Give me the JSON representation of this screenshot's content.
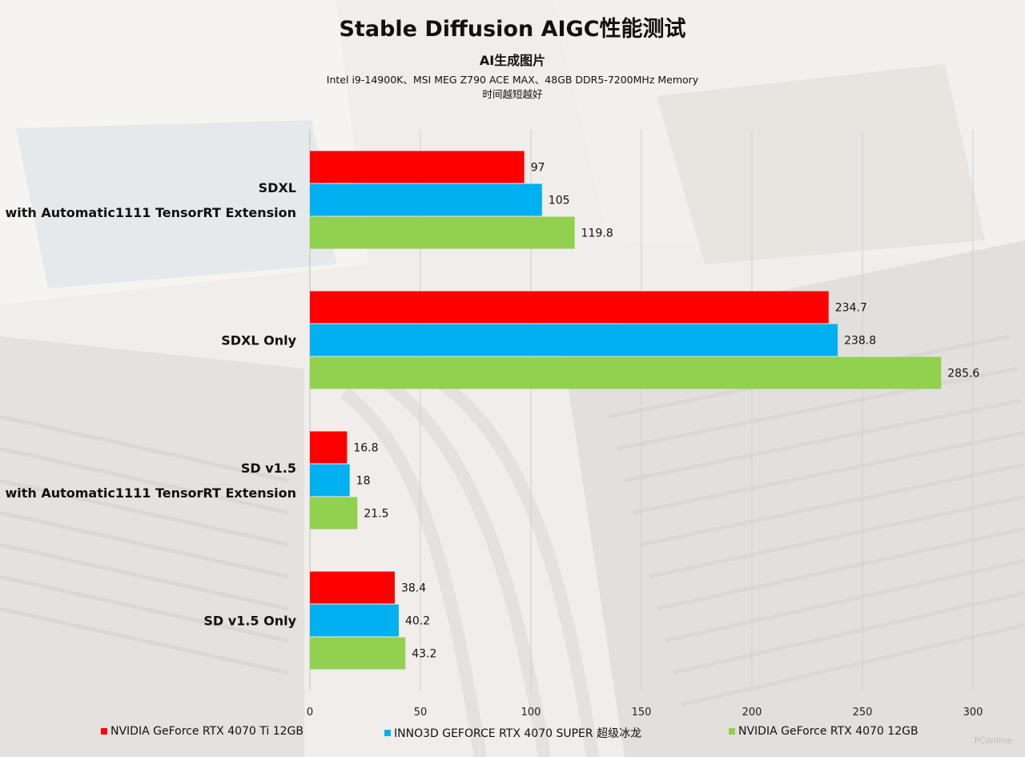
{
  "header": {
    "title": "Stable Diffusion AIGC性能测试",
    "subtitle": "AI生成图片",
    "note_line1": "Intel i9-14900K、MSI MEG Z790 ACE MAX、48GB DDR5-7200MHz Memory",
    "note_line2": "时间越短越好"
  },
  "watermark": "PConline",
  "chart_data": {
    "type": "bar",
    "orientation": "horizontal",
    "categories": [
      [
        "SDXL",
        "with Automatic1111 TensorRT Extension"
      ],
      [
        "SDXL Only"
      ],
      [
        "SD v1.5",
        "with Automatic1111 TensorRT Extension"
      ],
      [
        "SD v1.5 Only"
      ]
    ],
    "series": [
      {
        "name": "NVIDIA GeForce RTX 4070 Ti 12GB",
        "color": "#ff0000",
        "values": [
          97,
          234.7,
          16.8,
          38.4
        ],
        "labels": [
          "97",
          "234.7",
          "16.8",
          "38.4"
        ]
      },
      {
        "name": "INNO3D GEFORCE RTX 4070 SUPER 超级冰龙",
        "color": "#00b0f0",
        "values": [
          105,
          238.8,
          18,
          40.2
        ],
        "labels": [
          "105",
          "238.8",
          "18",
          "40.2"
        ]
      },
      {
        "name": "NVIDIA GeForce RTX 4070 12GB",
        "color": "#92d050",
        "values": [
          119.8,
          285.6,
          21.5,
          43.2
        ],
        "labels": [
          "119.8",
          "285.6",
          "21.5",
          "43.2"
        ]
      }
    ],
    "xlim": [
      0,
      300
    ],
    "xticks": [
      0,
      50,
      100,
      150,
      200,
      250,
      300
    ],
    "xtick_labels": [
      "0",
      "50",
      "100",
      "150",
      "200",
      "250",
      "300"
    ],
    "grid": "vertical",
    "legend_position": "bottom",
    "background": "photo of graphics card heatsink (faded)"
  }
}
